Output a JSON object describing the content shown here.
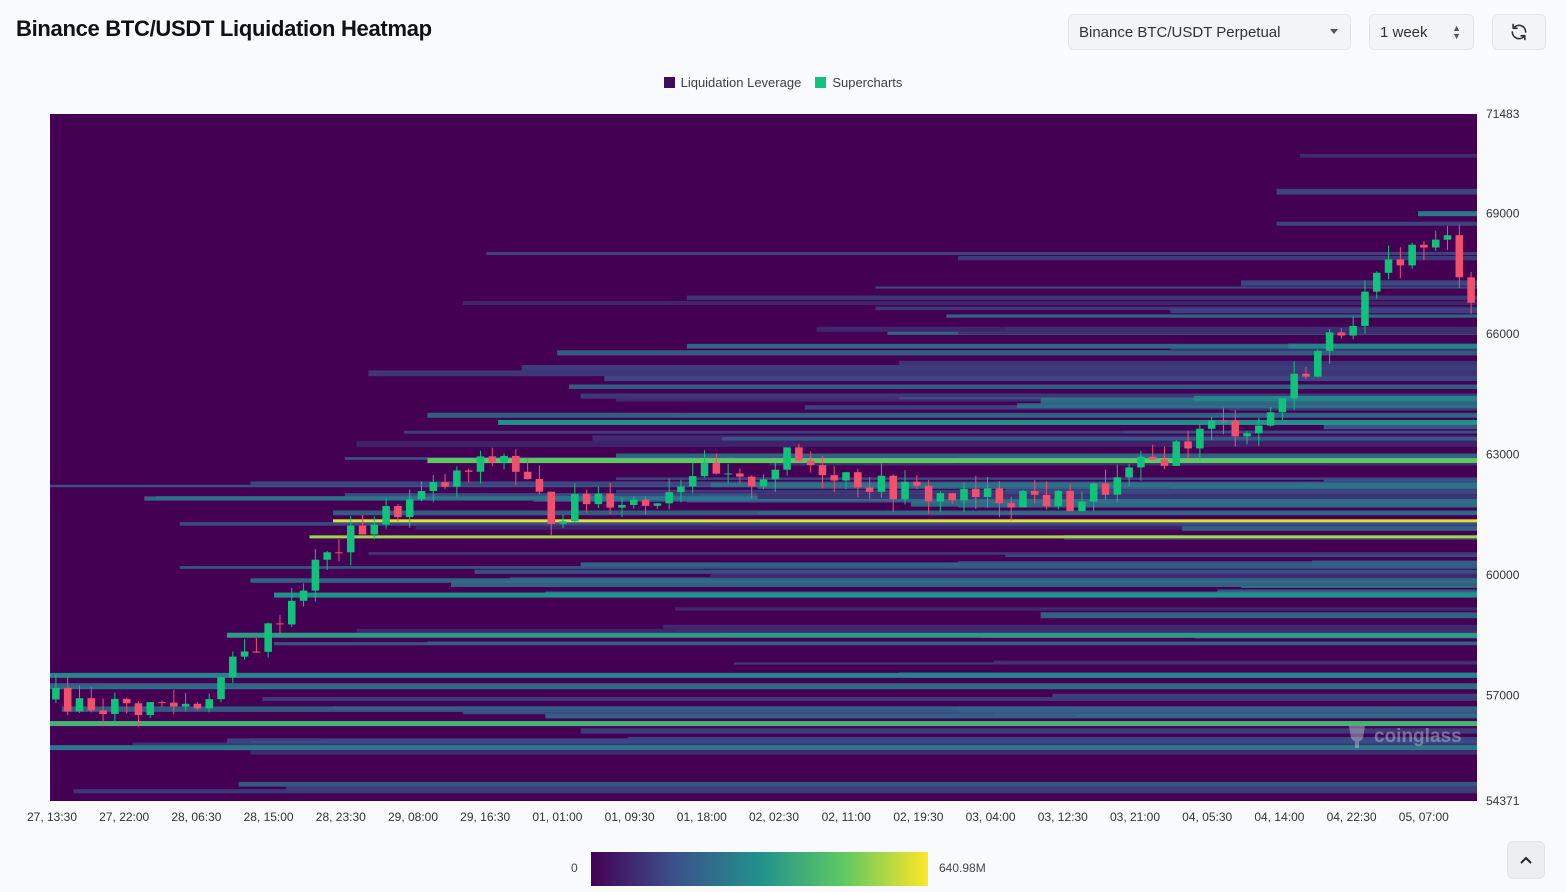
{
  "header": {
    "title": "Binance BTC/USDT Liquidation Heatmap",
    "exchange_select": "Binance BTC/USDT Perpetual",
    "range_select": "1 week",
    "refresh_icon": "refresh-icon"
  },
  "legend": {
    "items": [
      {
        "label": "Liquidation Leverage",
        "color": "#3b0f5c"
      },
      {
        "label": "Supercharts",
        "color": "#10c27a"
      }
    ]
  },
  "colorbar": {
    "min_label": "0",
    "max_label": "640.98M"
  },
  "watermark": "coinglass",
  "chart_data": {
    "type": "heatmap",
    "title": "Binance BTC/USDT Liquidation Heatmap",
    "ylim": [
      54371,
      71483
    ],
    "y_ticks": [
      "71483",
      "69000",
      "66000",
      "63000",
      "60000",
      "57000",
      "54371"
    ],
    "y_tick_values": [
      71483,
      69000,
      66000,
      63000,
      60000,
      57000,
      54371
    ],
    "x_ticks": [
      "27, 13:30",
      "27, 22:00",
      "28, 06:30",
      "28, 15:00",
      "28, 23:30",
      "29, 08:00",
      "29, 16:30",
      "01, 01:00",
      "01, 09:30",
      "01, 18:00",
      "02, 02:30",
      "02, 11:00",
      "02, 19:30",
      "03, 04:00",
      "03, 12:30",
      "03, 21:00",
      "04, 05:30",
      "04, 14:00",
      "04, 22:30",
      "05, 07:00"
    ],
    "colorscale": {
      "min": 0,
      "max": "640.98M",
      "colors": [
        "#440154",
        "#3b528b",
        "#21918c",
        "#5ec962",
        "#fde725"
      ]
    },
    "price_path": {
      "time_index": [
        0,
        6,
        12,
        18,
        22,
        26,
        30,
        34,
        38,
        42,
        46,
        50,
        54,
        58,
        62,
        66,
        70,
        74,
        78,
        82,
        86,
        90,
        94,
        98,
        102,
        106,
        110,
        114,
        118,
        120
      ],
      "close": [
        56900,
        56700,
        56800,
        58600,
        60200,
        61200,
        61800,
        62400,
        63000,
        61500,
        62000,
        61800,
        62600,
        62200,
        62900,
        62600,
        62200,
        62000,
        61900,
        62000,
        61800,
        62300,
        63000,
        63700,
        63700,
        65200,
        66500,
        68000,
        68300,
        67000
      ]
    },
    "bands": [
      {
        "price": 61350,
        "intensity": 0.95
      },
      {
        "price": 60950,
        "intensity": 0.85
      },
      {
        "price": 62850,
        "intensity": 0.75
      },
      {
        "price": 56300,
        "intensity": 0.65
      },
      {
        "price": 58500,
        "intensity": 0.55
      },
      {
        "price": 59500,
        "intensity": 0.5
      },
      {
        "price": 63800,
        "intensity": 0.5
      },
      {
        "price": 64400,
        "intensity": 0.45
      },
      {
        "price": 65700,
        "intensity": 0.45
      },
      {
        "price": 69000,
        "intensity": 0.4
      },
      {
        "price": 57500,
        "intensity": 0.45
      },
      {
        "price": 55700,
        "intensity": 0.4
      }
    ]
  }
}
